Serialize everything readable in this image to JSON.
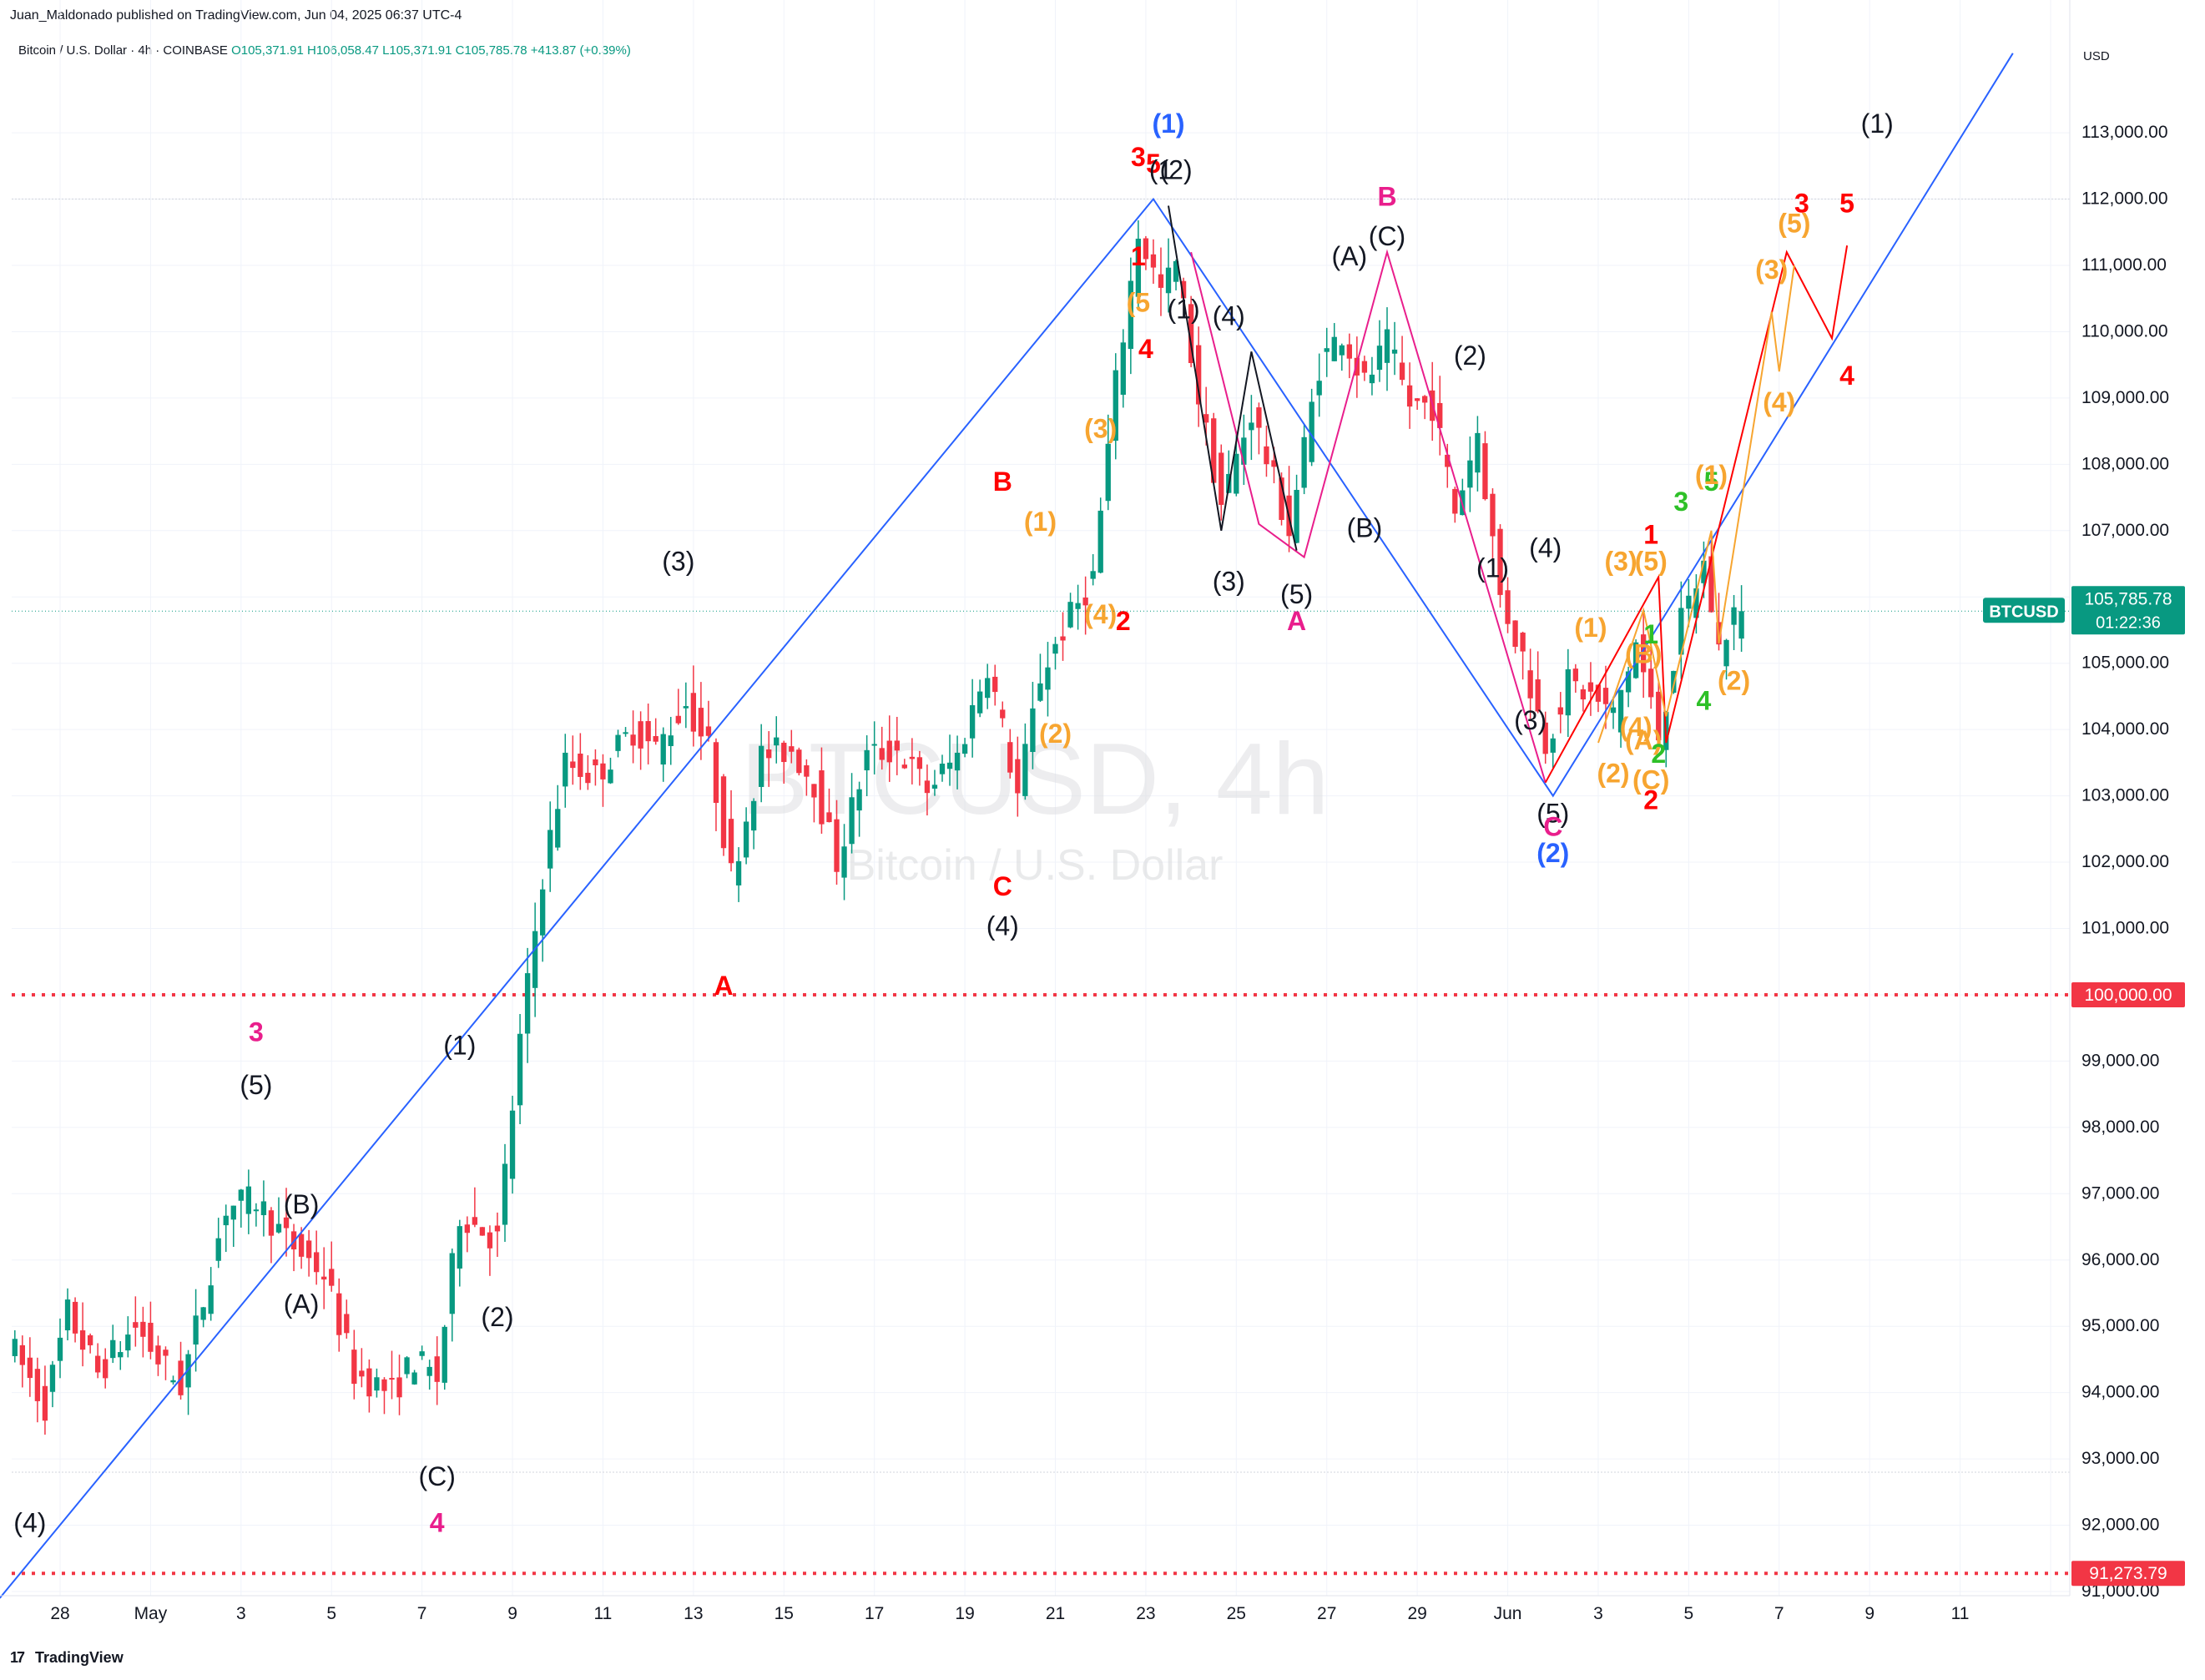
{
  "header": {
    "publisher": "Juan_Maldonado published on TradingView.com, Jun 04, 2025 06:37 UTC-4",
    "symbol_desc": "Bitcoin / U.S. Dollar · 4h · COINBASE",
    "open": "O105,371.91",
    "high": "H106,058.47",
    "low": "L105,371.91",
    "close": "C105,785.78",
    "change": "+413.87 (+0.39%)"
  },
  "watermark": {
    "symbol": "BTCUSD, 4h",
    "name": "Bitcoin / U.S. Dollar"
  },
  "footer": {
    "logo": "TradingView",
    "logo_mark": "17"
  },
  "price_axis": {
    "currency": "USD",
    "labels": [
      "113,000.00",
      "112,000.00",
      "111,000.00",
      "110,000.00",
      "109,000.00",
      "108,000.00",
      "107,000.00",
      "106,000.00",
      "105,000.00",
      "104,000.00",
      "103,000.00",
      "102,000.00",
      "101,000.00",
      "100,000.00",
      "99,000.00",
      "98,000.00",
      "97,000.00",
      "96,000.00",
      "95,000.00",
      "94,000.00",
      "93,000.00",
      "92,000.00",
      "91,273.79",
      "91,000.00"
    ],
    "tag_symbol": "BTCUSD",
    "tag_price": "105,785.78",
    "tag_countdown": "01:22:36",
    "level_100k": "100,000.00",
    "level_low": "91,273.79"
  },
  "colors": {
    "up": "#089981",
    "down": "#f23645",
    "wave_blue": "#2962ff",
    "orange": "#f7a530",
    "magenta": "#e91e8c",
    "green": "#2ec028",
    "red": "#ff0000",
    "black": "#131722"
  },
  "chart_data": {
    "type": "candlestick",
    "symbol": "BTCUSD",
    "timeframe": "4h",
    "exchange": "COINBASE",
    "x_axis_labels": [
      "28",
      "May",
      "3",
      "5",
      "7",
      "9",
      "11",
      "13",
      "15",
      "17",
      "19",
      "21",
      "23",
      "25",
      "27",
      "29",
      "Jun",
      "3",
      "5",
      "7",
      "9",
      "11"
    ],
    "x_range": [
      "2025-04-27",
      "2025-06-11"
    ],
    "y_range": [
      90800,
      114200
    ],
    "current_price": 105785.78,
    "horizontal_levels": [
      100000,
      91273.79
    ],
    "price_path": [
      [
        "2025-04-27T00:00",
        94800
      ],
      [
        "2025-04-27T20:00",
        93800
      ],
      [
        "2025-04-28T08:00",
        95200
      ],
      [
        "2025-04-29T00:00",
        94300
      ],
      [
        "2025-04-29T20:00",
        95000
      ],
      [
        "2025-04-30T08:00",
        94500
      ],
      [
        "2025-04-30T20:00",
        94100
      ],
      [
        "2025-05-01T08:00",
        95400
      ],
      [
        "2025-05-01T20:00",
        96800
      ],
      [
        "2025-05-02T12:00",
        96900
      ],
      [
        "2025-05-03T04:00",
        96300
      ],
      [
        "2025-05-04T00:00",
        95800
      ],
      [
        "2025-05-04T16:00",
        94300
      ],
      [
        "2025-05-05T12:00",
        94000
      ],
      [
        "2025-05-06T00:00",
        94500
      ],
      [
        "2025-05-06T12:00",
        94200
      ],
      [
        "2025-05-07T00:00",
        96700
      ],
      [
        "2025-05-07T20:00",
        96300
      ],
      [
        "2025-05-08T08:00",
        99300
      ],
      [
        "2025-05-08T20:00",
        101800
      ],
      [
        "2025-05-09T08:00",
        103500
      ],
      [
        "2025-05-10T00:00",
        103300
      ],
      [
        "2025-05-10T20:00",
        104000
      ],
      [
        "2025-05-11T08:00",
        103700
      ],
      [
        "2025-05-12T00:00",
        104400
      ],
      [
        "2025-05-12T12:00",
        103700
      ],
      [
        "2025-05-13T00:00",
        101800
      ],
      [
        "2025-05-13T16:00",
        103600
      ],
      [
        "2025-05-14T08:00",
        103700
      ],
      [
        "2025-05-14T20:00",
        103200
      ],
      [
        "2025-05-15T08:00",
        102000
      ],
      [
        "2025-05-16T00:00",
        103600
      ],
      [
        "2025-05-16T16:00",
        103700
      ],
      [
        "2025-05-17T08:00",
        103100
      ],
      [
        "2025-05-18T00:00",
        103600
      ],
      [
        "2025-05-18T16:00",
        105000
      ],
      [
        "2025-05-19T08:00",
        103000
      ],
      [
        "2025-05-19T20:00",
        104800
      ],
      [
        "2025-05-20T08:00",
        105500
      ],
      [
        "2025-05-21T00:00",
        106300
      ],
      [
        "2025-05-21T12:00",
        109200
      ],
      [
        "2025-05-22T00:00",
        111500
      ],
      [
        "2025-05-22T12:00",
        110600
      ],
      [
        "2025-05-22T20:00",
        111000
      ],
      [
        "2025-05-23T08:00",
        109000
      ],
      [
        "2025-05-23T20:00",
        107400
      ],
      [
        "2025-05-24T12:00",
        108800
      ],
      [
        "2025-05-25T08:00",
        107000
      ],
      [
        "2025-05-26T00:00",
        109500
      ],
      [
        "2025-05-26T12:00",
        110000
      ],
      [
        "2025-05-27T00:00",
        109200
      ],
      [
        "2025-05-27T12:00",
        109800
      ],
      [
        "2025-05-28T00:00",
        108900
      ],
      [
        "2025-05-28T12:00",
        108900
      ],
      [
        "2025-05-29T00:00",
        107300
      ],
      [
        "2025-05-29T12:00",
        108500
      ],
      [
        "2025-05-30T00:00",
        106000
      ],
      [
        "2025-05-30T12:00",
        105100
      ],
      [
        "2025-05-31T00:00",
        103800
      ],
      [
        "2025-05-31T12:00",
        104700
      ],
      [
        "2025-06-01T00:00",
        104500
      ],
      [
        "2025-06-01T12:00",
        104200
      ],
      [
        "2025-06-02T00:00",
        105300
      ],
      [
        "2025-06-02T12:00",
        103900
      ],
      [
        "2025-06-03T00:00",
        105600
      ],
      [
        "2025-06-03T12:00",
        106500
      ],
      [
        "2025-06-03T20:00",
        105200
      ],
      [
        "2025-06-04T04:00",
        105785.78
      ]
    ],
    "wave_lines": [
      {
        "color": "blue",
        "points": [
          [
            "2025-04-26T16:00",
            90900
          ],
          [
            "2025-05-22T04:00",
            112000
          ],
          [
            "2025-05-31T00:00",
            103000
          ],
          [
            "2025-06-10T04:00",
            114200
          ]
        ]
      },
      {
        "color": "magenta",
        "points": [
          [
            "2025-05-23T00:00",
            111200
          ],
          [
            "2025-05-24T12:00",
            107100
          ],
          [
            "2025-05-25T12:00",
            106600
          ],
          [
            "2025-05-27T08:00",
            111200
          ],
          [
            "2025-05-30T20:00",
            103200
          ]
        ]
      },
      {
        "color": "black",
        "points": [
          [
            "2025-05-22T12:00",
            111900
          ],
          [
            "2025-05-23T16:00",
            107000
          ],
          [
            "2025-05-24T08:00",
            109700
          ],
          [
            "2025-05-25T08:00",
            106700
          ]
        ]
      },
      {
        "color": "red",
        "points": [
          [
            "2025-05-30T20:00",
            103200
          ],
          [
            "2025-06-02T08:00",
            106300
          ],
          [
            "2025-06-02T12:00",
            103800
          ],
          [
            "2025-06-05T04:00",
            111200
          ],
          [
            "2025-06-06T04:00",
            109900
          ],
          [
            "2025-06-06T12:00",
            111300
          ]
        ]
      },
      {
        "color": "orange",
        "points": [
          [
            "2025-06-01T00:00",
            103800
          ],
          [
            "2025-06-02T00:00",
            105800
          ],
          [
            "2025-06-02T12:00",
            104200
          ],
          [
            "2025-06-03T12:00",
            107000
          ],
          [
            "2025-06-03T16:00",
            105300
          ],
          [
            "2025-06-04T20:00",
            110300
          ],
          [
            "2025-06-05T00:00",
            109400
          ],
          [
            "2025-06-05T08:00",
            111000
          ]
        ]
      }
    ],
    "wave_labels": [
      {
        "text": "(4)",
        "color": "black",
        "x": "2025-04-27T08:00",
        "y": 91900
      },
      {
        "text": "3",
        "color": "magenta",
        "x": "2025-05-02T08:00",
        "y": 99300
      },
      {
        "text": "(5)",
        "color": "black",
        "x": "2025-05-02T08:00",
        "y": 98500
      },
      {
        "text": "(B)",
        "color": "black",
        "x": "2025-05-03T08:00",
        "y": 96700
      },
      {
        "text": "(A)",
        "color": "black",
        "x": "2025-05-03T08:00",
        "y": 95200
      },
      {
        "text": "(C)",
        "color": "black",
        "x": "2025-05-06T08:00",
        "y": 92600
      },
      {
        "text": "4",
        "color": "magenta",
        "x": "2025-05-06T08:00",
        "y": 91900
      },
      {
        "text": "(1)",
        "color": "black",
        "x": "2025-05-06T20:00",
        "y": 99100
      },
      {
        "text": "(2)",
        "color": "black",
        "x": "2025-05-07T16:00",
        "y": 95000
      },
      {
        "text": "(3)",
        "color": "black",
        "x": "2025-05-11T16:00",
        "y": 106400
      },
      {
        "text": "A",
        "color": "red",
        "x": "2025-05-12T16:00",
        "y": 100000
      },
      {
        "text": "B",
        "color": "red",
        "x": "2025-05-18T20:00",
        "y": 107600
      },
      {
        "text": "C",
        "color": "red",
        "x": "2025-05-18T20:00",
        "y": 101500
      },
      {
        "text": "(4)",
        "color": "black",
        "x": "2025-05-18T20:00",
        "y": 100900
      },
      {
        "text": "(1)",
        "color": "orange",
        "x": "2025-05-19T16:00",
        "y": 107000
      },
      {
        "text": "(2)",
        "color": "orange",
        "x": "2025-05-20T00:00",
        "y": 103800
      },
      {
        "text": "(3)",
        "color": "orange",
        "x": "2025-05-21T00:00",
        "y": 108400
      },
      {
        "text": "(4)",
        "color": "orange",
        "x": "2025-05-21T00:00",
        "y": 105600
      },
      {
        "text": "2",
        "color": "red",
        "x": "2025-05-21T12:00",
        "y": 105500
      },
      {
        "text": "(5",
        "color": "orange",
        "x": "2025-05-21T20:00",
        "y": 110300
      },
      {
        "text": "4",
        "color": "red",
        "x": "2025-05-22T00:00",
        "y": 109600
      },
      {
        "text": "1",
        "color": "red",
        "x": "2025-05-21T20:00",
        "y": 111000
      },
      {
        "text": "3",
        "color": "red",
        "x": "2025-05-21T20:00",
        "y": 112500
      },
      {
        "text": "5",
        "color": "red",
        "x": "2025-05-22T04:00",
        "y": 112400
      },
      {
        "text": "(1)",
        "color": "blue",
        "x": "2025-05-22T12:00",
        "y": 113000
      },
      {
        "text": "(1",
        "color": "black",
        "x": "2025-05-22T08:00",
        "y": 112300
      },
      {
        "text": "(2)",
        "color": "black",
        "x": "2025-05-22T16:00",
        "y": 112300
      },
      {
        "text": "(1)",
        "color": "black",
        "x": "2025-05-22T20:00",
        "y": 110200
      },
      {
        "text": "(4)",
        "color": "black",
        "x": "2025-05-23T20:00",
        "y": 110100
      },
      {
        "text": "(3)",
        "color": "black",
        "x": "2025-05-23T20:00",
        "y": 106100
      },
      {
        "text": "(5)",
        "color": "black",
        "x": "2025-05-25T08:00",
        "y": 105900
      },
      {
        "text": "A",
        "color": "magenta",
        "x": "2025-05-25T08:00",
        "y": 105500
      },
      {
        "text": "B",
        "color": "magenta",
        "x": "2025-05-27T08:00",
        "y": 111900
      },
      {
        "text": "(A)",
        "color": "black",
        "x": "2025-05-26T12:00",
        "y": 111000
      },
      {
        "text": "(C)",
        "color": "black",
        "x": "2025-05-27T08:00",
        "y": 111300
      },
      {
        "text": "(B)",
        "color": "black",
        "x": "2025-05-26T20:00",
        "y": 106900
      },
      {
        "text": "(2)",
        "color": "black",
        "x": "2025-05-29T04:00",
        "y": 109500
      },
      {
        "text": "(1)",
        "color": "black",
        "x": "2025-05-29T16:00",
        "y": 106300
      },
      {
        "text": "(4)",
        "color": "black",
        "x": "2025-05-30T20:00",
        "y": 106600
      },
      {
        "text": "(3)",
        "color": "black",
        "x": "2025-05-30T12:00",
        "y": 104000
      },
      {
        "text": "(5)",
        "color": "black",
        "x": "2025-05-31T00:00",
        "y": 102600
      },
      {
        "text": "C",
        "color": "magenta",
        "x": "2025-05-31T00:00",
        "y": 102400
      },
      {
        "text": "(2)",
        "color": "blue",
        "x": "2025-05-31T00:00",
        "y": 102000
      },
      {
        "text": "(1)",
        "color": "orange",
        "x": "2025-05-31T20:00",
        "y": 105400
      },
      {
        "text": "(2)",
        "color": "orange",
        "x": "2025-06-01T08:00",
        "y": 103200
      },
      {
        "text": "(3)",
        "color": "orange",
        "x": "2025-06-01T12:00",
        "y": 106400
      },
      {
        "text": "(5)",
        "color": "orange",
        "x": "2025-06-02T04:00",
        "y": 106400
      },
      {
        "text": "(4)",
        "color": "orange",
        "x": "2025-06-01T20:00",
        "y": 103900
      },
      {
        "text": "1",
        "color": "red",
        "x": "2025-06-02T04:00",
        "y": 106800
      },
      {
        "text": "2",
        "color": "red",
        "x": "2025-06-02T04:00",
        "y": 102800
      },
      {
        "text": "(A)",
        "color": "orange",
        "x": "2025-06-02T00:00",
        "y": 103700
      },
      {
        "text": "(C)",
        "color": "orange",
        "x": "2025-06-02T04:00",
        "y": 103100
      },
      {
        "text": "(B)",
        "color": "orange",
        "x": "2025-06-02T00:00",
        "y": 105000
      },
      {
        "text": "1",
        "color": "green",
        "x": "2025-06-02T04:00",
        "y": 105300
      },
      {
        "text": "2",
        "color": "green",
        "x": "2025-06-02T08:00",
        "y": 103500
      },
      {
        "text": "3",
        "color": "green",
        "x": "2025-06-02T20:00",
        "y": 107300
      },
      {
        "text": "4",
        "color": "green",
        "x": "2025-06-03T08:00",
        "y": 104300
      },
      {
        "text": "5",
        "color": "green",
        "x": "2025-06-03T12:00",
        "y": 107600
      },
      {
        "text": "(1)",
        "color": "orange",
        "x": "2025-06-03T12:00",
        "y": 107700
      },
      {
        "text": "(2)",
        "color": "orange",
        "x": "2025-06-04T00:00",
        "y": 104600
      },
      {
        "text": "(3)",
        "color": "orange",
        "x": "2025-06-04T20:00",
        "y": 110800
      },
      {
        "text": "(4)",
        "color": "orange",
        "x": "2025-06-05T00:00",
        "y": 108800
      },
      {
        "text": "(5)",
        "color": "orange",
        "x": "2025-06-05T08:00",
        "y": 111500
      },
      {
        "text": "3",
        "color": "red",
        "x": "2025-06-05T12:00",
        "y": 111800
      },
      {
        "text": "4",
        "color": "red",
        "x": "2025-06-06T12:00",
        "y": 109200
      },
      {
        "text": "5",
        "color": "red",
        "x": "2025-06-06T12:00",
        "y": 111800
      },
      {
        "text": "(1)",
        "color": "black",
        "x": "2025-06-07T04:00",
        "y": 113000
      }
    ]
  }
}
